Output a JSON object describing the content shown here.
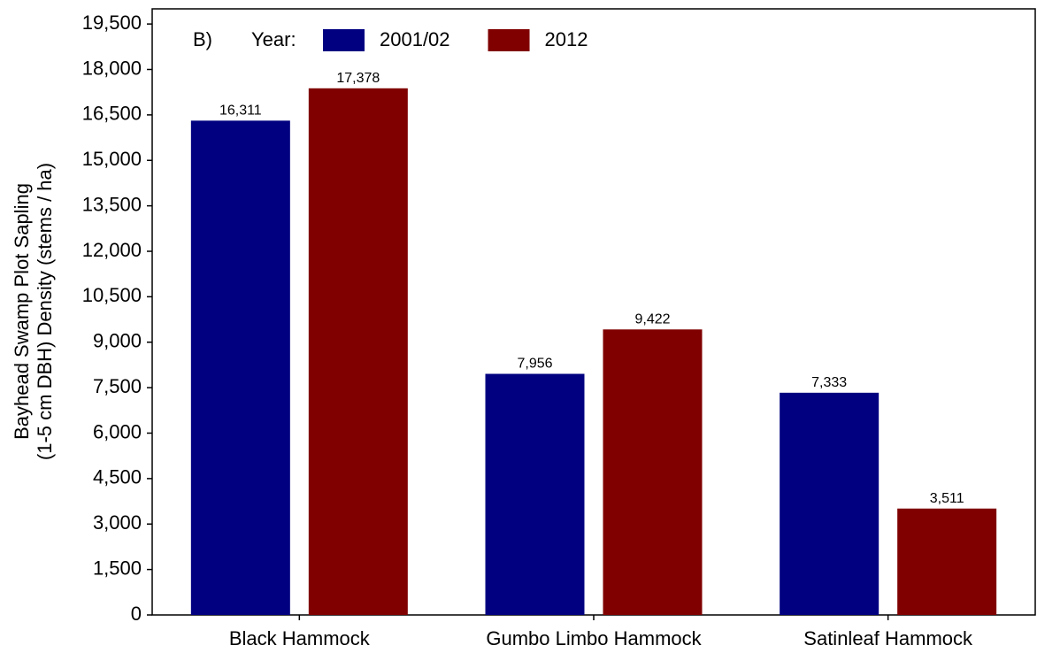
{
  "chart_data": {
    "type": "bar",
    "panel_label": "B)",
    "legend_title": "Year:",
    "y_label": [
      "Bayhead Swamp Plot Sapling",
      "(1-5 cm DBH) Density (stems / ha)"
    ],
    "categories": [
      "Black Hammock",
      "Gumbo Limbo Hammock",
      "Satinleaf Hammock"
    ],
    "series": [
      {
        "name": "2001/02",
        "color": "#000080",
        "values": [
          16311,
          7956,
          7333
        ],
        "value_labels": [
          "16,311",
          "7,956",
          "7,333"
        ]
      },
      {
        "name": "2012",
        "color": "#800000",
        "values": [
          17378,
          9422,
          3511
        ],
        "value_labels": [
          "17,378",
          "9,422",
          "3,511"
        ]
      }
    ],
    "ylim": [
      0,
      20000
    ],
    "yticks": [
      0,
      {
        "value": 1500,
        "label": "1,500"
      },
      {
        "value": 3000,
        "label": "3,000"
      },
      {
        "value": 4500,
        "label": "4,500"
      },
      {
        "value": 6000,
        "label": "6,000"
      },
      {
        "value": 7500,
        "label": "7,500"
      },
      {
        "value": 9000,
        "label": "9,000"
      },
      {
        "value": 10500,
        "label": "10,500"
      },
      {
        "value": 12000,
        "label": "12,000"
      },
      {
        "value": 13500,
        "label": "13,500"
      },
      {
        "value": 15000,
        "label": "15,000"
      },
      {
        "value": 16500,
        "label": "16,500"
      },
      {
        "value": 18000,
        "label": "18,000"
      },
      {
        "value": 19500,
        "label": "19,500"
      }
    ],
    "grid": false
  }
}
